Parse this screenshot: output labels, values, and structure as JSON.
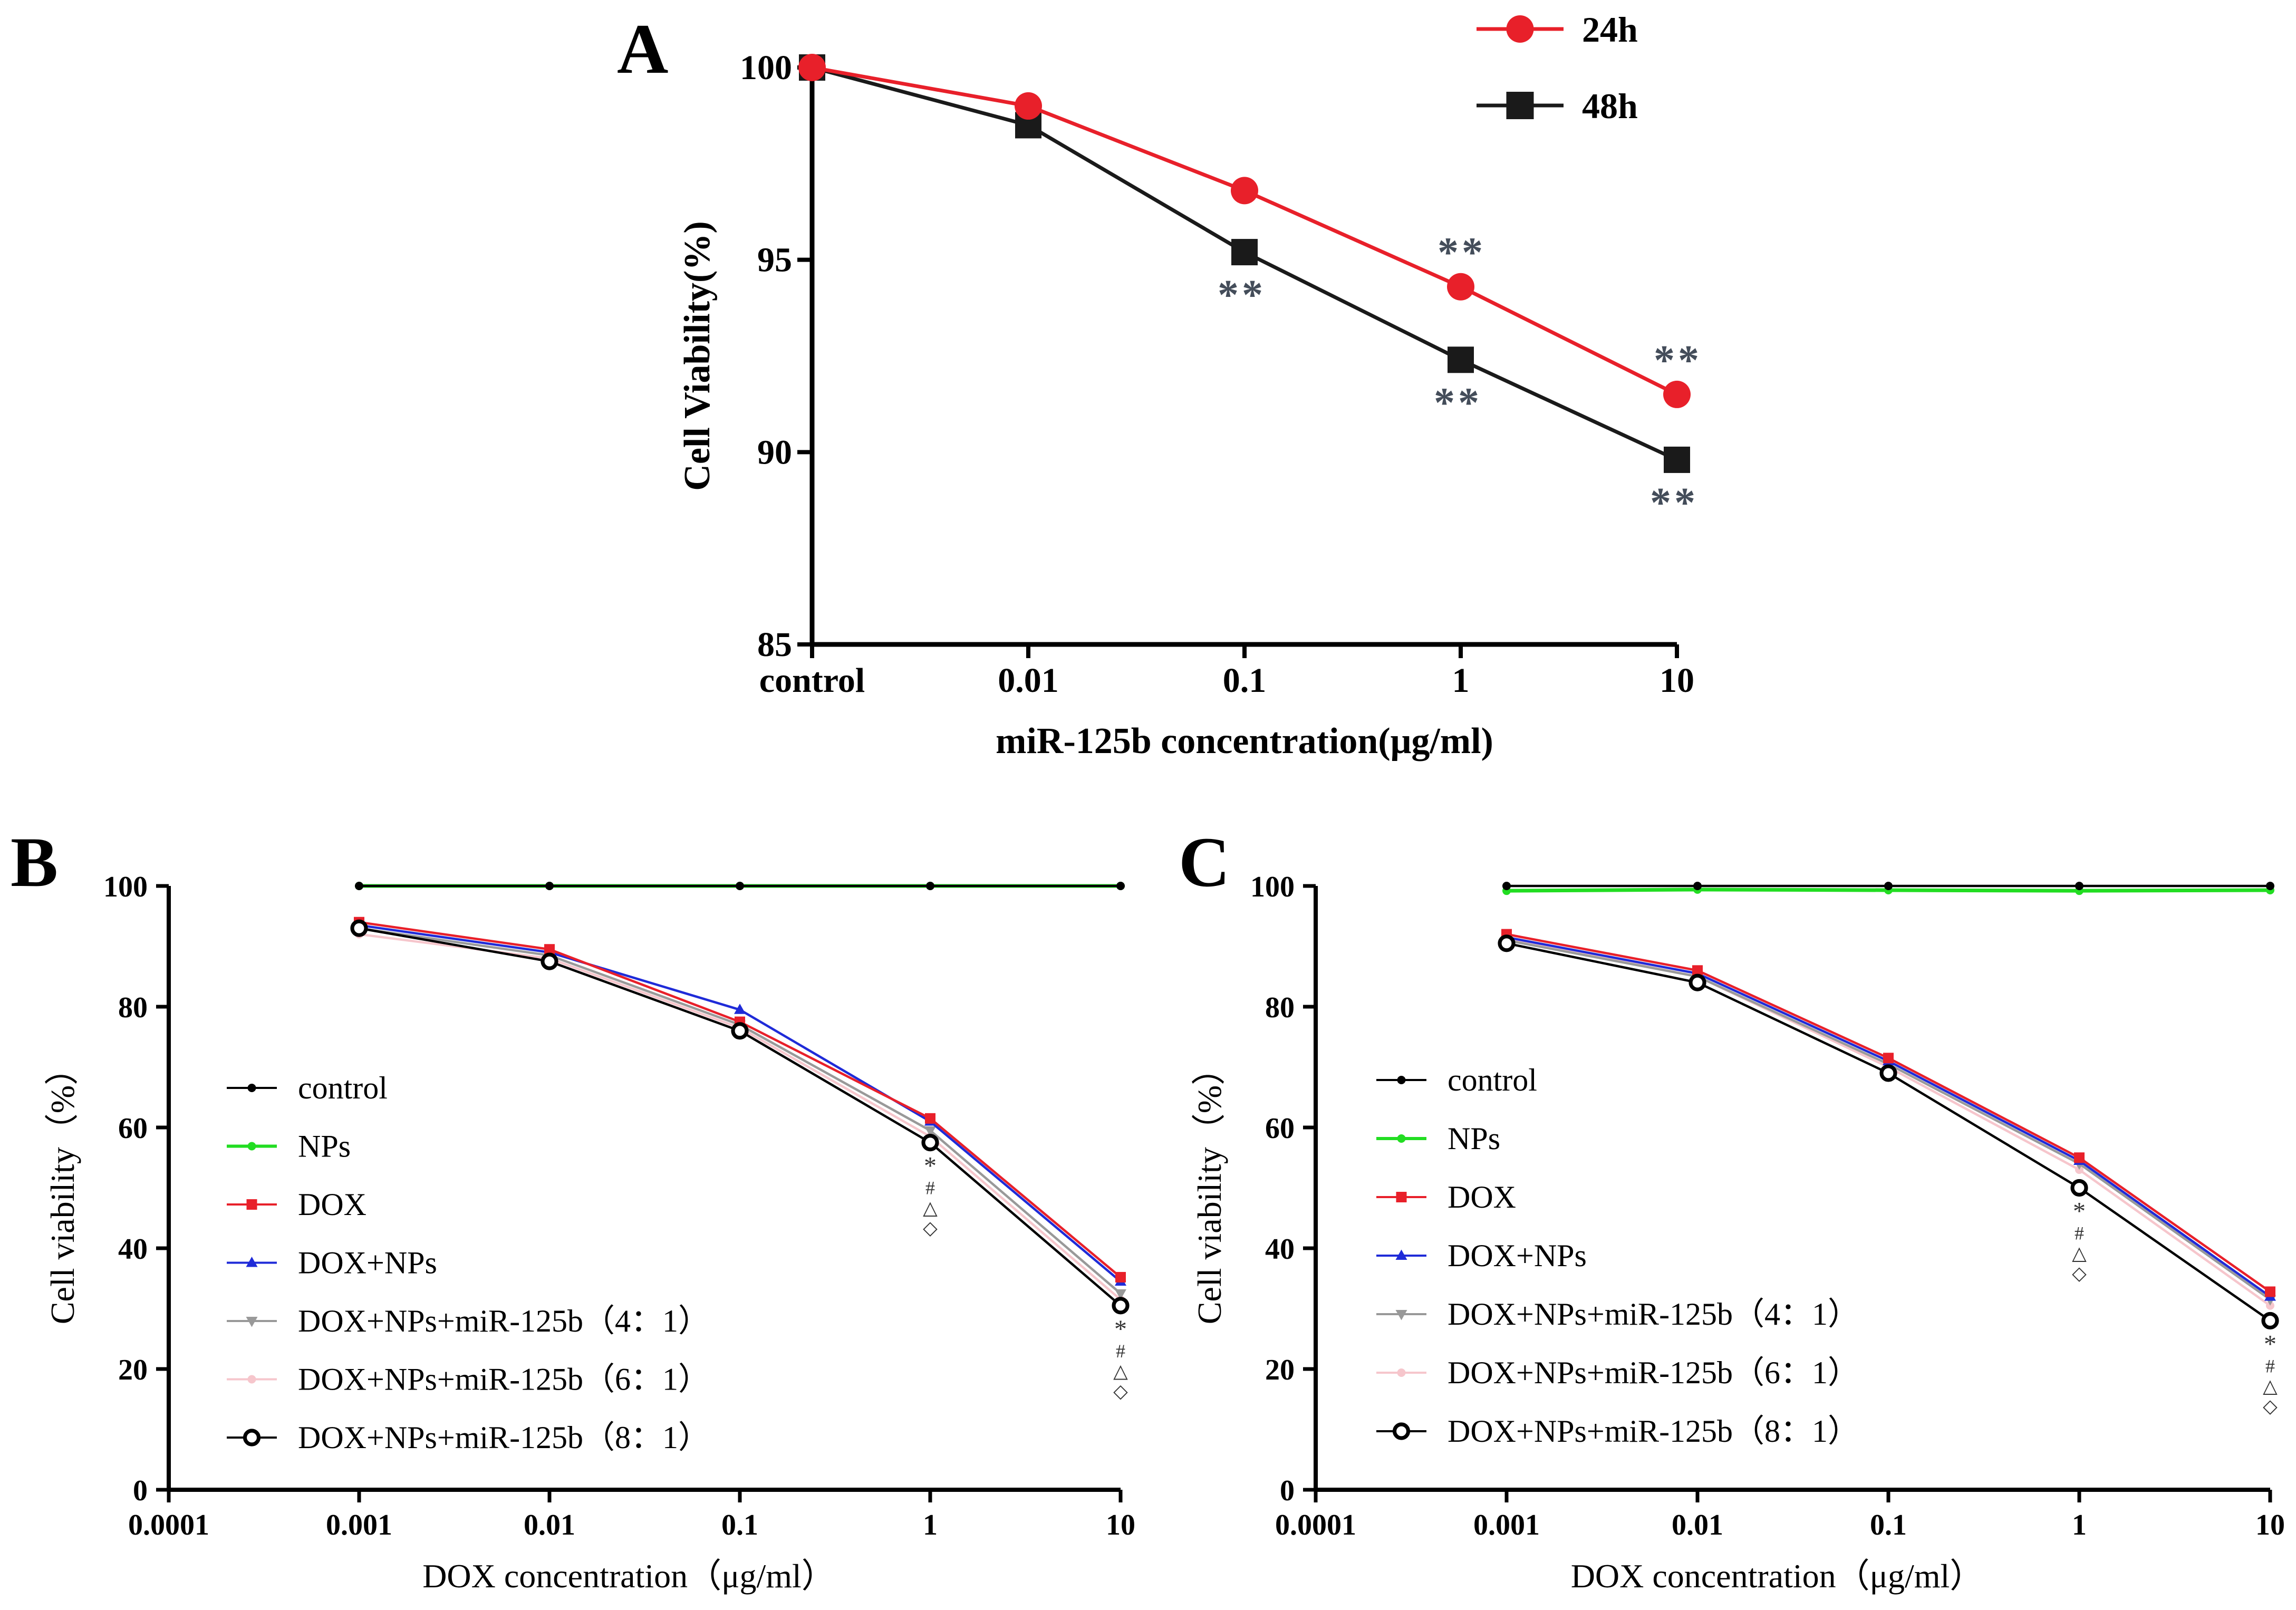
{
  "chart_data": [
    {
      "id": "A",
      "type": "line",
      "panel_label": "A",
      "xlabel": "miR-125b concentration(μg/ml)",
      "ylabel": "Cell Viability(%)",
      "categories": [
        "control",
        "0.01",
        "0.1",
        "1",
        "10"
      ],
      "ylim": [
        85,
        100
      ],
      "yticks": [
        "85",
        "90",
        "95",
        "100"
      ],
      "legend_position": "top-right",
      "series": [
        {
          "name": "24h",
          "color": "#e8202a",
          "marker": "circle",
          "values": [
            100,
            99.0,
            96.8,
            94.3,
            91.5
          ]
        },
        {
          "name": "48h",
          "color": "#1a1a1a",
          "marker": "square",
          "values": [
            100,
            98.5,
            95.2,
            92.4,
            89.8
          ]
        }
      ],
      "annotations": [
        {
          "text": "**",
          "series": "48h",
          "x": "0.1",
          "side": "below"
        },
        {
          "text": "**",
          "series": "24h",
          "x": "1",
          "side": "above"
        },
        {
          "text": "**",
          "series": "48h",
          "x": "1",
          "side": "below"
        },
        {
          "text": "**",
          "series": "24h",
          "x": "10",
          "side": "above"
        },
        {
          "text": "**",
          "series": "48h",
          "x": "10",
          "side": "below"
        }
      ]
    },
    {
      "id": "B",
      "type": "line",
      "panel_label": "B",
      "xlabel": "DOX concentration（μg/ml）",
      "ylabel": "Cell viability（%）",
      "x": [
        0.001,
        0.01,
        0.1,
        1,
        10
      ],
      "xscale": "log",
      "xlim": [
        0.0001,
        10
      ],
      "xticks": [
        "0.0001",
        "0.001",
        "0.01",
        "0.1",
        "1",
        "10"
      ],
      "ylim": [
        0,
        100
      ],
      "yticks": [
        "0",
        "20",
        "40",
        "60",
        "80",
        "100"
      ],
      "legend_position": "left-middle",
      "series": [
        {
          "name": "control",
          "color": "#000000",
          "marker": "dot",
          "values": [
            100,
            100,
            100,
            100,
            100
          ]
        },
        {
          "name": "NPs",
          "color": "#22dd22",
          "marker": "dot",
          "values": [
            100,
            100,
            100,
            100,
            100
          ]
        },
        {
          "name": "DOX",
          "color": "#e8202a",
          "marker": "square",
          "values": [
            94,
            89.5,
            77.5,
            61.5,
            35.2
          ]
        },
        {
          "name": "DOX+NPs",
          "color": "#1f2bd8",
          "marker": "triangle",
          "values": [
            93.5,
            89,
            79.5,
            61,
            34.5
          ]
        },
        {
          "name": "DOX+NPs+miR-125b（4：1）",
          "color": "#999999",
          "marker": "triangle-down",
          "values": [
            93,
            88.5,
            77,
            59.5,
            32.5
          ]
        },
        {
          "name": "DOX+NPs+miR-125b（6：1）",
          "color": "#f6c6cc",
          "marker": "dot",
          "values": [
            92,
            88,
            76.5,
            58.5,
            31.5
          ]
        },
        {
          "name": "DOX+NPs+miR-125b（8：1）",
          "color": "#000000",
          "marker": "open-circle",
          "values": [
            93,
            87.5,
            76,
            57.5,
            30.5
          ]
        }
      ],
      "annotations": [
        {
          "text": "*",
          "x": 1
        },
        {
          "text": "#",
          "x": 1
        },
        {
          "text": "△",
          "x": 1
        },
        {
          "text": "◇",
          "x": 1
        },
        {
          "text": "*",
          "x": 10
        },
        {
          "text": "#",
          "x": 10
        },
        {
          "text": "△",
          "x": 10
        },
        {
          "text": "◇",
          "x": 10
        }
      ]
    },
    {
      "id": "C",
      "type": "line",
      "panel_label": "C",
      "xlabel": "DOX concentration（μg/ml）",
      "ylabel": "Cell viability（%）",
      "x": [
        0.001,
        0.01,
        0.1,
        1,
        10
      ],
      "xscale": "log",
      "xlim": [
        0.0001,
        10
      ],
      "xticks": [
        "0.0001",
        "0.001",
        "0.01",
        "0.1",
        "1",
        "10"
      ],
      "ylim": [
        0,
        100
      ],
      "yticks": [
        "0",
        "20",
        "40",
        "60",
        "80",
        "100"
      ],
      "legend_position": "left-middle",
      "series": [
        {
          "name": "control",
          "color": "#000000",
          "marker": "dot",
          "values": [
            100,
            100,
            100,
            100,
            100
          ]
        },
        {
          "name": "NPs",
          "color": "#22dd22",
          "marker": "dot",
          "values": [
            99.2,
            99.4,
            99.3,
            99.2,
            99.3
          ]
        },
        {
          "name": "DOX",
          "color": "#e8202a",
          "marker": "square",
          "values": [
            92,
            86,
            71.5,
            55,
            32.8
          ]
        },
        {
          "name": "DOX+NPs",
          "color": "#1f2bd8",
          "marker": "triangle",
          "values": [
            91.5,
            85.5,
            71,
            54.5,
            32
          ]
        },
        {
          "name": "DOX+NPs+miR-125b（4：1）",
          "color": "#999999",
          "marker": "triangle-down",
          "values": [
            91,
            85,
            70.5,
            54,
            31.5
          ]
        },
        {
          "name": "DOX+NPs+miR-125b（6：1）",
          "color": "#f6c6cc",
          "marker": "dot",
          "values": [
            91.3,
            85,
            70,
            53,
            30.5
          ]
        },
        {
          "name": "DOX+NPs+miR-125b（8：1）",
          "color": "#000000",
          "marker": "open-circle",
          "values": [
            90.5,
            84,
            69,
            50,
            28
          ]
        }
      ],
      "annotations": [
        {
          "text": "*",
          "x": 1
        },
        {
          "text": "#",
          "x": 1
        },
        {
          "text": "△",
          "x": 1
        },
        {
          "text": "◇",
          "x": 1
        },
        {
          "text": "*",
          "x": 10
        },
        {
          "text": "#",
          "x": 10
        },
        {
          "text": "△",
          "x": 10
        },
        {
          "text": "◇",
          "x": 10
        }
      ]
    }
  ]
}
